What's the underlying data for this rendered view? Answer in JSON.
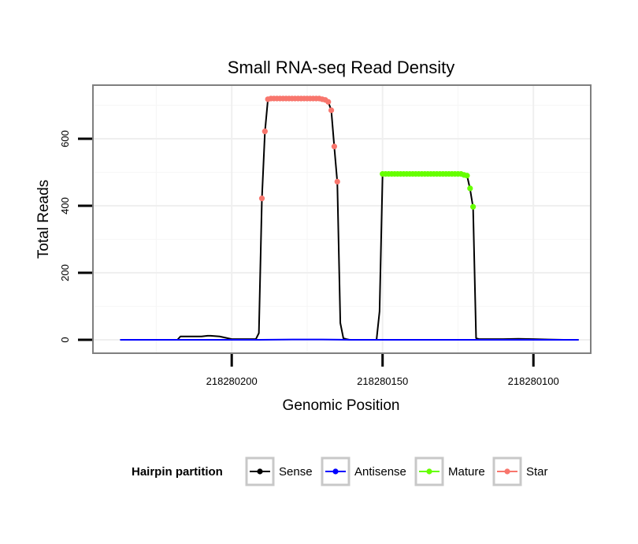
{
  "chart_data": {
    "type": "line",
    "title": "Small RNA-seq Read Density",
    "xlabel": "Genomic Position",
    "ylabel": "Total Reads",
    "xlim": [
      218280246,
      218280081
    ],
    "ylim": [
      -40,
      760
    ],
    "x_reversed": true,
    "x_ticks": [
      218280200,
      218280150,
      218280100
    ],
    "x_tick_labels": [
      "218280200",
      "218280150",
      "218280100"
    ],
    "y_ticks": [
      0,
      200,
      400,
      600
    ],
    "y_tick_labels": [
      "0",
      "200",
      "400",
      "600"
    ],
    "grid": true,
    "legend": {
      "title": "Hairpin partition",
      "position": "bottom",
      "entries": [
        {
          "name": "Sense",
          "color": "#000000"
        },
        {
          "name": "Antisense",
          "color": "#0000ff"
        },
        {
          "name": "Mature",
          "color": "#66ff00"
        },
        {
          "name": "Star",
          "color": "#f8766d"
        }
      ]
    },
    "series": [
      {
        "name": "Sense",
        "color": "#000000",
        "marker": false,
        "x": [
          218280237,
          218280218,
          218280217,
          218280210,
          218280208,
          218280207,
          218280204,
          218280200,
          218280192,
          218280191,
          218280190,
          218280189,
          218280188,
          218280187,
          218280186,
          218280185,
          218280184,
          218280183,
          218280182,
          218280181,
          218280180,
          218280179,
          218280178,
          218280177,
          218280176,
          218280175,
          218280174,
          218280173,
          218280172,
          218280171,
          218280170,
          218280169,
          218280168,
          218280167,
          218280166,
          218280165,
          218280164,
          218280163,
          218280162,
          218280161,
          218280160,
          218280159,
          218280158,
          218280157,
          218280152,
          218280151,
          218280150,
          218280149,
          218280148,
          218280147,
          218280146,
          218280145,
          218280144,
          218280143,
          218280142,
          218280141,
          218280140,
          218280139,
          218280138,
          218280137,
          218280136,
          218280135,
          218280134,
          218280133,
          218280132,
          218280131,
          218280130,
          218280129,
          218280128,
          218280127,
          218280126,
          218280125,
          218280124,
          218280123,
          218280122,
          218280121,
          218280120,
          218280119,
          218280118,
          218280117,
          218280116,
          218280115,
          218280114,
          218280113,
          218280112,
          218280111,
          218280110,
          218280105,
          218280100,
          218280095,
          218280090,
          218280085
        ],
        "y": [
          0,
          0,
          10,
          10,
          12,
          12,
          10,
          2,
          2,
          20,
          420,
          620,
          718,
          720,
          720,
          720,
          720,
          720,
          720,
          720,
          720,
          720,
          720,
          720,
          720,
          720,
          720,
          720,
          720,
          720,
          718,
          716,
          710,
          685,
          575,
          470,
          50,
          5,
          2,
          0,
          0,
          0,
          0,
          0,
          0,
          85,
          493,
          495,
          495,
          495,
          495,
          495,
          495,
          495,
          495,
          495,
          495,
          495,
          495,
          495,
          495,
          495,
          495,
          495,
          495,
          495,
          495,
          495,
          495,
          495,
          495,
          495,
          495,
          492,
          490,
          450,
          395,
          5,
          2,
          2,
          2,
          2,
          2,
          2,
          2,
          2,
          2,
          3,
          2,
          1,
          0,
          0
        ]
      },
      {
        "name": "Antisense",
        "color": "#0000ff",
        "marker": false,
        "x": [
          218280237,
          218280191,
          218280180,
          218280170,
          218280160,
          218280085
        ],
        "y": [
          0,
          0,
          1,
          1,
          0,
          0
        ]
      },
      {
        "name": "Mature",
        "color": "#66ff00",
        "marker": true,
        "x": [
          218280150,
          218280149,
          218280148,
          218280147,
          218280146,
          218280145,
          218280144,
          218280143,
          218280142,
          218280141,
          218280140,
          218280139,
          218280138,
          218280137,
          218280136,
          218280135,
          218280134,
          218280133,
          218280132,
          218280131,
          218280130,
          218280129,
          218280128,
          218280127,
          218280126,
          218280125,
          218280124,
          218280123,
          218280122,
          218280121,
          218280120
        ],
        "y": [
          495,
          495,
          495,
          495,
          495,
          495,
          495,
          495,
          495,
          495,
          495,
          495,
          495,
          495,
          495,
          495,
          495,
          495,
          495,
          495,
          495,
          495,
          495,
          495,
          495,
          495,
          495,
          492,
          490,
          452,
          397
        ]
      },
      {
        "name": "Star",
        "color": "#f8766d",
        "marker": true,
        "x": [
          218280190,
          218280189,
          218280188,
          218280187,
          218280186,
          218280185,
          218280184,
          218280183,
          218280182,
          218280181,
          218280180,
          218280179,
          218280178,
          218280177,
          218280176,
          218280175,
          218280174,
          218280173,
          218280172,
          218280171,
          218280170,
          218280169,
          218280168,
          218280167,
          218280166,
          218280165
        ],
        "y": [
          422,
          622,
          718,
          720,
          720,
          720,
          720,
          720,
          720,
          720,
          720,
          720,
          720,
          720,
          720,
          720,
          720,
          720,
          720,
          720,
          718,
          716,
          710,
          685,
          577,
          472
        ]
      }
    ]
  }
}
